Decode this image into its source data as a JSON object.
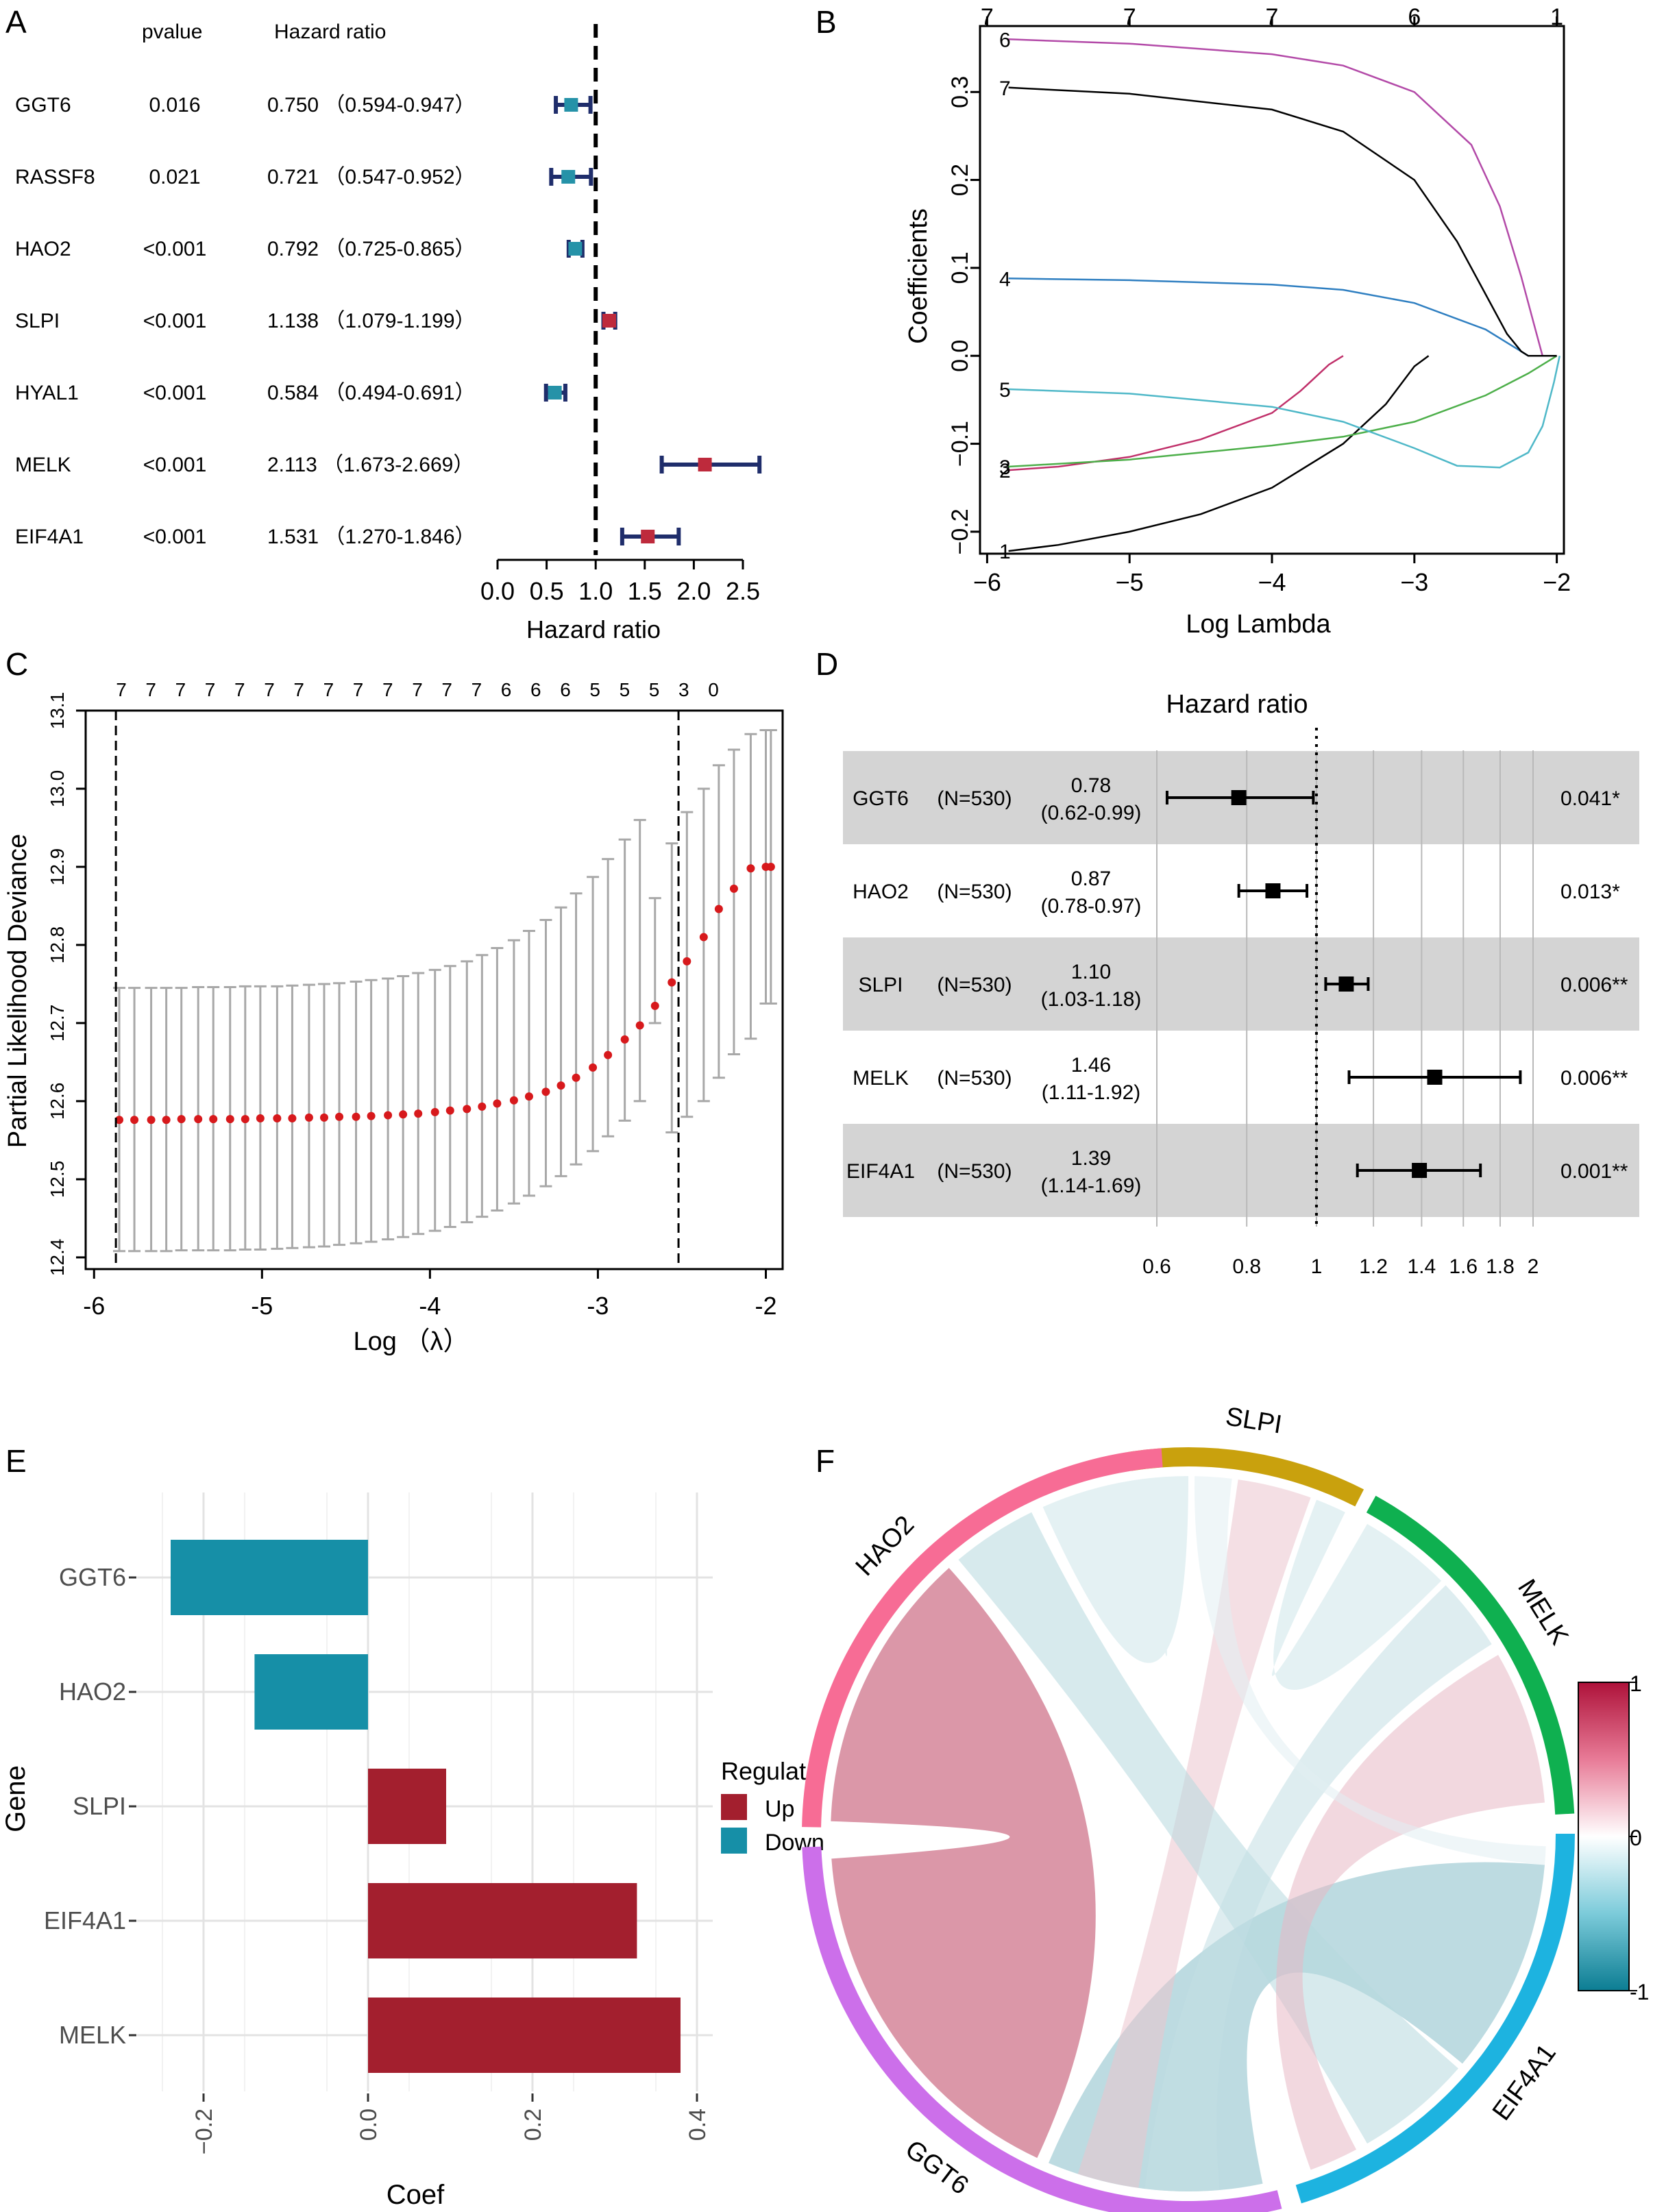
{
  "figure": {
    "panel_letters": [
      "A",
      "B",
      "C",
      "D",
      "E",
      "F"
    ]
  },
  "chart_data": [
    {
      "panel": "A",
      "type": "forest",
      "column_headers": {
        "pvalue": "pvalue",
        "hr": "Hazard ratio"
      },
      "xlabel": "Hazard ratio",
      "ticks": [
        "0.0",
        "0.5",
        "1.0",
        "1.5",
        "2.0",
        "2.5"
      ],
      "xlim": [
        0,
        2.5
      ],
      "reference": 1.0,
      "colors": {
        "down": "#2592A8",
        "up": "#BE2A3C",
        "whisker": "#1F2D6B"
      },
      "rows": [
        {
          "gene": "GGT6",
          "pvalue": "0.016",
          "hr_text": "0.750 （0.594-0.947）",
          "hr": 0.75,
          "lo": 0.594,
          "hi": 0.947,
          "dir": "down"
        },
        {
          "gene": "RASSF8",
          "pvalue": "0.021",
          "hr_text": "0.721 （0.547-0.952）",
          "hr": 0.721,
          "lo": 0.547,
          "hi": 0.952,
          "dir": "down"
        },
        {
          "gene": "HAO2",
          "pvalue": "<0.001",
          "hr_text": "0.792 （0.725-0.865）",
          "hr": 0.792,
          "lo": 0.725,
          "hi": 0.865,
          "dir": "down"
        },
        {
          "gene": "SLPI",
          "pvalue": "<0.001",
          "hr_text": "1.138 （1.079-1.199）",
          "hr": 1.138,
          "lo": 1.079,
          "hi": 1.199,
          "dir": "up"
        },
        {
          "gene": "HYAL1",
          "pvalue": "<0.001",
          "hr_text": "0.584 （0.494-0.691）",
          "hr": 0.584,
          "lo": 0.494,
          "hi": 0.691,
          "dir": "down"
        },
        {
          "gene": "MELK",
          "pvalue": "<0.001",
          "hr_text": "2.113 （1.673-2.669）",
          "hr": 2.113,
          "lo": 1.673,
          "hi": 2.669,
          "dir": "up"
        },
        {
          "gene": "EIF4A1",
          "pvalue": "<0.001",
          "hr_text": "1.531 （1.270-1.846）",
          "hr": 1.531,
          "lo": 1.27,
          "hi": 1.846,
          "dir": "up"
        }
      ]
    },
    {
      "panel": "B",
      "type": "line",
      "xlabel": "Log Lambda",
      "ylabel": "Coefficients",
      "xlim": [
        -6.05,
        -1.95
      ],
      "ylim": [
        -0.225,
        0.375
      ],
      "xticks": [
        "−6",
        "−5",
        "−4",
        "−3",
        "−2"
      ],
      "xtick_values": [
        -6,
        -5,
        -4,
        -3,
        -2
      ],
      "yticks": [
        "−0.2",
        "−0.1",
        "0.0",
        "0.1",
        "0.2",
        "0.3"
      ],
      "ytick_values": [
        -0.2,
        -0.1,
        0.0,
        0.1,
        0.2,
        0.3
      ],
      "top_ticks": [
        "7",
        "7",
        "7",
        "6",
        "1"
      ],
      "top_tick_values": [
        -6,
        -5,
        -4,
        -3,
        -2
      ],
      "series": [
        {
          "name": "1",
          "color": "#000000",
          "x": [
            -5.85,
            -5.5,
            -5,
            -4.5,
            -4,
            -3.5,
            -3.2,
            -3.0,
            -2.9
          ],
          "y": [
            -0.222,
            -0.215,
            -0.2,
            -0.18,
            -0.15,
            -0.1,
            -0.055,
            -0.012,
            0.0
          ]
        },
        {
          "name": "2",
          "color": "#C0306A",
          "x": [
            -5.85,
            -5.5,
            -5,
            -4.5,
            -4,
            -3.8,
            -3.6,
            -3.5
          ],
          "y": [
            -0.13,
            -0.126,
            -0.115,
            -0.095,
            -0.065,
            -0.04,
            -0.01,
            0.0
          ]
        },
        {
          "name": "3",
          "color": "#4DAF4A",
          "x": [
            -5.85,
            -5,
            -4.5,
            -4,
            -3.5,
            -3,
            -2.5,
            -2.2,
            -2.0
          ],
          "y": [
            -0.126,
            -0.118,
            -0.11,
            -0.102,
            -0.092,
            -0.075,
            -0.045,
            -0.02,
            0.0
          ]
        },
        {
          "name": "4",
          "color": "#2F7FC1",
          "x": [
            -5.85,
            -5,
            -4,
            -3.5,
            -3,
            -2.5,
            -2.3,
            -2.2,
            -2.05
          ],
          "y": [
            0.088,
            0.086,
            0.081,
            0.075,
            0.06,
            0.03,
            0.01,
            0.0,
            0.0
          ]
        },
        {
          "name": "5",
          "color": "#4FB8C8",
          "x": [
            -5.85,
            -5,
            -4,
            -3.5,
            -3.0,
            -2.7,
            -2.4,
            -2.2,
            -2.1,
            -2.02,
            -1.98
          ],
          "y": [
            -0.038,
            -0.043,
            -0.058,
            -0.075,
            -0.105,
            -0.125,
            -0.127,
            -0.11,
            -0.08,
            -0.03,
            0.0
          ]
        },
        {
          "name": "6",
          "color": "#B34AA8",
          "x": [
            -5.85,
            -5,
            -4,
            -3.5,
            -3,
            -2.6,
            -2.4,
            -2.25,
            -2.15,
            -2.1,
            -2.0
          ],
          "y": [
            0.36,
            0.355,
            0.343,
            0.33,
            0.3,
            0.24,
            0.17,
            0.09,
            0.03,
            0.0,
            0.0
          ]
        },
        {
          "name": "7",
          "color": "#000000",
          "x": [
            -5.85,
            -5,
            -4,
            -3.5,
            -3,
            -2.7,
            -2.5,
            -2.35,
            -2.25,
            -2.2,
            -2.0
          ],
          "y": [
            0.305,
            0.298,
            0.28,
            0.255,
            0.2,
            0.13,
            0.07,
            0.025,
            0.005,
            0.0,
            0.0
          ]
        }
      ]
    },
    {
      "panel": "C",
      "type": "scatter",
      "xlabel": "Log （λ）",
      "ylabel": "Partial Likelihood Deviance",
      "xlim": [
        -6.05,
        -1.9
      ],
      "ylim": [
        12.385,
        13.1
      ],
      "xticks": [
        "-6",
        "-5",
        "-4",
        "-3",
        "-2"
      ],
      "xtick_values": [
        -6,
        -5,
        -4,
        -3,
        -2
      ],
      "yticks": [
        "12.4",
        "12.5",
        "12.6",
        "12.7",
        "12.8",
        "12.9",
        "13.0",
        "13.1"
      ],
      "ytick_values": [
        12.4,
        12.5,
        12.6,
        12.7,
        12.8,
        12.9,
        13.0,
        13.1
      ],
      "top_labels": [
        "7",
        "7",
        "7",
        "7",
        "7",
        "7",
        "7",
        "7",
        "7",
        "7",
        "7",
        "7",
        "7",
        "6",
        "6",
        "6",
        "5",
        "5",
        "5",
        "3",
        "0"
      ],
      "vlines": [
        -5.87,
        -2.52
      ],
      "point_color": "#D7191C",
      "errorbar_color": "#A8A8A8",
      "x": [
        -5.85,
        -5.76,
        -5.66,
        -5.57,
        -5.48,
        -5.38,
        -5.29,
        -5.19,
        -5.1,
        -5.01,
        -4.91,
        -4.82,
        -4.72,
        -4.63,
        -4.54,
        -4.44,
        -4.35,
        -4.25,
        -4.16,
        -4.07,
        -3.97,
        -3.88,
        -3.78,
        -3.69,
        -3.6,
        -3.5,
        -3.41,
        -3.31,
        -3.22,
        -3.13,
        -3.03,
        -2.94,
        -2.84,
        -2.75,
        -2.66,
        -2.56,
        -2.47,
        -2.37,
        -2.28,
        -2.19,
        -2.09,
        -2.0,
        -1.97
      ],
      "y": [
        12.576,
        12.576,
        12.576,
        12.576,
        12.577,
        12.577,
        12.577,
        12.577,
        12.577,
        12.578,
        12.578,
        12.578,
        12.579,
        12.579,
        12.58,
        12.58,
        12.581,
        12.582,
        12.583,
        12.584,
        12.586,
        12.588,
        12.59,
        12.593,
        12.597,
        12.601,
        12.606,
        12.612,
        12.62,
        12.63,
        12.643,
        12.659,
        12.679,
        12.697,
        12.722,
        12.752,
        12.779,
        12.81,
        12.846,
        12.872,
        12.898,
        12.9,
        12.9
      ],
      "lower": [
        12.408,
        12.408,
        12.408,
        12.408,
        12.409,
        12.409,
        12.409,
        12.409,
        12.41,
        12.41,
        12.411,
        12.412,
        12.413,
        12.414,
        12.416,
        12.418,
        12.42,
        12.423,
        12.426,
        12.43,
        12.434,
        12.439,
        12.445,
        12.452,
        12.46,
        12.469,
        12.479,
        12.491,
        12.504,
        12.519,
        12.536,
        12.555,
        12.575,
        12.6,
        12.7,
        12.56,
        12.58,
        12.6,
        12.63,
        12.66,
        12.68,
        12.725,
        12.725
      ],
      "upper": [
        12.745,
        12.745,
        12.745,
        12.745,
        12.745,
        12.746,
        12.746,
        12.746,
        12.747,
        12.747,
        12.747,
        12.748,
        12.749,
        12.75,
        12.751,
        12.753,
        12.755,
        12.757,
        12.76,
        12.764,
        12.768,
        12.773,
        12.779,
        12.787,
        12.796,
        12.806,
        12.818,
        12.832,
        12.848,
        12.866,
        12.887,
        12.91,
        12.935,
        12.96,
        12.86,
        12.93,
        12.97,
        13.0,
        13.03,
        13.05,
        13.07,
        13.075,
        13.075
      ]
    },
    {
      "panel": "D",
      "type": "forest",
      "title": "Hazard ratio",
      "scale": "log",
      "xlim": [
        0.55,
        2.2
      ],
      "xticks": [
        "0.6",
        "0.8",
        "1",
        "1.2",
        "1.4",
        "1.6",
        "1.8",
        "2"
      ],
      "xtick_values": [
        0.6,
        0.8,
        1,
        1.2,
        1.4,
        1.6,
        1.8,
        2
      ],
      "reference": 1,
      "band_color": "#D4D4D4",
      "rows": [
        {
          "gene": "GGT6",
          "n": "(N=530)",
          "hr_text": "0.78",
          "ci_text": "(0.62-0.99)",
          "hr": 0.78,
          "lo": 0.62,
          "hi": 0.99,
          "p": "0.041*",
          "shaded": true
        },
        {
          "gene": "HAO2",
          "n": "(N=530)",
          "hr_text": "0.87",
          "ci_text": "(0.78-0.97)",
          "hr": 0.87,
          "lo": 0.78,
          "hi": 0.97,
          "p": "0.013*",
          "shaded": false
        },
        {
          "gene": "SLPI",
          "n": "(N=530)",
          "hr_text": "1.10",
          "ci_text": "(1.03-1.18)",
          "hr": 1.1,
          "lo": 1.03,
          "hi": 1.18,
          "p": "0.006**",
          "shaded": true
        },
        {
          "gene": "MELK",
          "n": "(N=530)",
          "hr_text": "1.46",
          "ci_text": "(1.11-1.92)",
          "hr": 1.46,
          "lo": 1.11,
          "hi": 1.92,
          "p": "0.006**",
          "shaded": false
        },
        {
          "gene": "EIF4A1",
          "n": "(N=530)",
          "hr_text": "1.39",
          "ci_text": "(1.14-1.69)",
          "hr": 1.39,
          "lo": 1.14,
          "hi": 1.69,
          "p": "0.001**",
          "shaded": true
        }
      ]
    },
    {
      "panel": "E",
      "type": "bar",
      "orientation": "horizontal",
      "xlabel": "Coef",
      "ylabel": "Gene",
      "xlim": [
        -0.26,
        0.42
      ],
      "xticks": [
        "−0.2",
        "0.0",
        "0.2",
        "0.4"
      ],
      "xtick_values": [
        -0.2,
        0.0,
        0.2,
        0.4
      ],
      "categories": [
        "GGT6",
        "HAO2",
        "SLPI",
        "EIF4A1",
        "MELK"
      ],
      "values": [
        -0.24,
        -0.138,
        0.095,
        0.327,
        0.38
      ],
      "regulate": [
        "Down",
        "Down",
        "Up",
        "Up",
        "Up"
      ],
      "legend": {
        "title": "Regulate",
        "items": [
          {
            "label": "Up",
            "color": "#A31F2E"
          },
          {
            "label": "Down",
            "color": "#168FA7"
          }
        ]
      }
    },
    {
      "panel": "F",
      "type": "chord",
      "sectors": [
        {
          "name": "SLPI",
          "color": "#C9A10D",
          "start": -9,
          "end": 27
        },
        {
          "name": "MELK",
          "color": "#0FB050",
          "start": 29,
          "end": 87
        },
        {
          "name": "EIF4A1",
          "color": "#1DB3E0",
          "start": 90,
          "end": 163
        },
        {
          "name": "GGT6",
          "color": "#CC6FEA",
          "start": 166,
          "end": 268
        },
        {
          "name": "HAO2",
          "color": "#F76C95",
          "start": 271,
          "end": 356
        }
      ],
      "correlation_scale": {
        "max": "1",
        "mid": "0",
        "min": "-1"
      },
      "links": [
        {
          "from": "HAO2",
          "to": "GGT6",
          "corr": 0.8
        },
        {
          "from": "GGT6",
          "to": "EIF4A1",
          "corr": -0.5
        },
        {
          "from": "GGT6",
          "to": "SLPI",
          "corr": 0.25
        },
        {
          "from": "HAO2",
          "to": "EIF4A1",
          "corr": -0.3
        },
        {
          "from": "HAO2",
          "to": "SLPI",
          "corr": -0.2
        },
        {
          "from": "GGT6",
          "to": "MELK",
          "corr": -0.25
        },
        {
          "from": "MELK",
          "to": "EIF4A1",
          "corr": 0.3
        },
        {
          "from": "SLPI",
          "to": "MELK",
          "corr": -0.2
        },
        {
          "from": "SLPI",
          "to": "EIF4A1",
          "corr": -0.12
        }
      ]
    }
  ]
}
